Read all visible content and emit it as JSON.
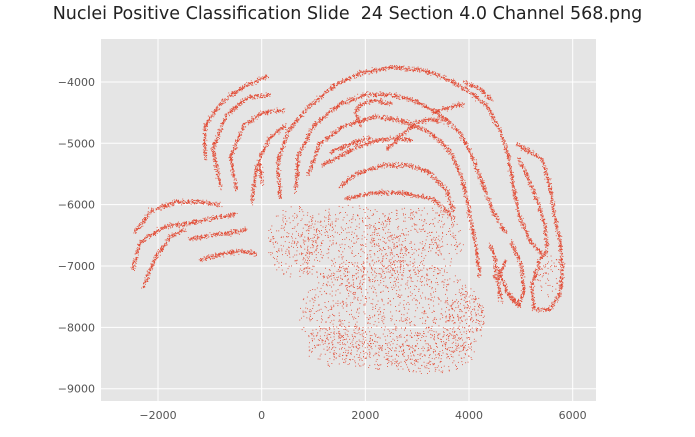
{
  "title": "Nuclei Positive Classification Slide  24 Section 4.0 Channel 568.png",
  "chart_data": {
    "type": "scatter",
    "title": "Nuclei Positive Classification Slide  24 Section 4.0 Channel 568.png",
    "xlabel": "",
    "ylabel": "",
    "xlim": [
      -3100,
      6450
    ],
    "ylim": [
      -9200,
      -3300
    ],
    "grid": true,
    "background": "#e5e5e5",
    "grid_color": "#ffffff",
    "marker_color": "#e24a33",
    "x_ticks": [
      -2000,
      0,
      2000,
      4000,
      6000
    ],
    "x_tick_labels": [
      "−2000",
      "0",
      "2000",
      "4000",
      "6000"
    ],
    "y_ticks": [
      -4000,
      -5000,
      -6000,
      -7000,
      -8000,
      -9000
    ],
    "y_tick_labels": [
      "−4000",
      "−5000",
      "−6000",
      "−7000",
      "−8000",
      "−9000"
    ],
    "point_count_note": "dense scatter of nuclei centroids (tens of thousands of points)",
    "structures": {
      "bands": [
        [
          [
            -2450,
            -6450
          ],
          [
            -2150,
            -6100
          ],
          [
            -1700,
            -5950
          ],
          [
            -1200,
            -5950
          ],
          [
            -800,
            -6000
          ]
        ],
        [
          [
            -2500,
            -7050
          ],
          [
            -2350,
            -6600
          ],
          [
            -1900,
            -6350
          ],
          [
            -1400,
            -6300
          ],
          [
            -900,
            -6200
          ],
          [
            -500,
            -6150
          ]
        ],
        [
          [
            -2300,
            -7350
          ],
          [
            -2050,
            -6850
          ],
          [
            -1750,
            -6500
          ],
          [
            -1500,
            -6400
          ]
        ],
        [
          [
            -1400,
            -6550
          ],
          [
            -1000,
            -6500
          ],
          [
            -600,
            -6450
          ],
          [
            -300,
            -6400
          ]
        ],
        [
          [
            -1200,
            -6900
          ],
          [
            -800,
            -6800
          ],
          [
            -400,
            -6750
          ],
          [
            -100,
            -6800
          ]
        ],
        [
          [
            -1100,
            -5250
          ],
          [
            -1100,
            -4700
          ],
          [
            -750,
            -4300
          ],
          [
            -300,
            -4050
          ],
          [
            100,
            -3900
          ]
        ],
        [
          [
            -800,
            -5700
          ],
          [
            -950,
            -5100
          ],
          [
            -700,
            -4550
          ],
          [
            -300,
            -4250
          ],
          [
            150,
            -4200
          ]
        ],
        [
          [
            -500,
            -5750
          ],
          [
            -600,
            -5200
          ],
          [
            -350,
            -4700
          ],
          [
            0,
            -4500
          ],
          [
            400,
            -4450
          ]
        ],
        [
          [
            -200,
            -5950
          ],
          [
            -100,
            -5350
          ],
          [
            150,
            -4900
          ],
          [
            450,
            -4700
          ]
        ],
        [
          [
            0,
            -5650
          ],
          [
            -50,
            -5300
          ]
        ],
        [
          [
            350,
            -5900
          ],
          [
            300,
            -5300
          ],
          [
            500,
            -4800
          ],
          [
            900,
            -4400
          ],
          [
            1400,
            -4050
          ],
          [
            1900,
            -3850
          ],
          [
            2500,
            -3750
          ],
          [
            3100,
            -3800
          ],
          [
            3600,
            -3950
          ],
          [
            4000,
            -4150
          ],
          [
            4350,
            -4400
          ],
          [
            4600,
            -4800
          ],
          [
            4750,
            -5200
          ],
          [
            4850,
            -5700
          ],
          [
            4950,
            -6150
          ],
          [
            5150,
            -6550
          ],
          [
            5400,
            -6800
          ]
        ],
        [
          [
            650,
            -5800
          ],
          [
            700,
            -5200
          ],
          [
            1000,
            -4700
          ],
          [
            1500,
            -4350
          ],
          [
            2000,
            -4200
          ],
          [
            2500,
            -4200
          ],
          [
            2950,
            -4300
          ],
          [
            3400,
            -4500
          ],
          [
            3800,
            -4800
          ],
          [
            4050,
            -5200
          ],
          [
            4250,
            -5650
          ],
          [
            4450,
            -6100
          ],
          [
            4700,
            -6450
          ]
        ],
        [
          [
            900,
            -5500
          ],
          [
            1100,
            -5000
          ],
          [
            1600,
            -4700
          ],
          [
            2200,
            -4550
          ],
          [
            2800,
            -4650
          ],
          [
            3300,
            -4850
          ],
          [
            3650,
            -5150
          ],
          [
            3850,
            -5550
          ],
          [
            3950,
            -5900
          ],
          [
            4050,
            -6350
          ],
          [
            4150,
            -6800
          ],
          [
            4200,
            -7150
          ]
        ],
        [
          [
            1150,
            -5350
          ],
          [
            1500,
            -5200
          ],
          [
            1850,
            -5050
          ],
          [
            2200,
            -4950
          ],
          [
            2600,
            -4900
          ],
          [
            2900,
            -4950
          ]
        ],
        [
          [
            1300,
            -5150
          ],
          [
            1700,
            -5000
          ],
          [
            2100,
            -4900
          ]
        ],
        [
          [
            1500,
            -5700
          ],
          [
            1800,
            -5500
          ],
          [
            2300,
            -5350
          ],
          [
            2800,
            -5350
          ],
          [
            3200,
            -5450
          ],
          [
            3550,
            -5750
          ],
          [
            3700,
            -6100
          ]
        ],
        [
          [
            1600,
            -5900
          ],
          [
            2100,
            -5800
          ],
          [
            2700,
            -5800
          ],
          [
            3300,
            -5900
          ],
          [
            3700,
            -6200
          ]
        ],
        [
          [
            2400,
            -5100
          ],
          [
            2700,
            -4850
          ],
          [
            3000,
            -4650
          ],
          [
            3300,
            -4600
          ],
          [
            3500,
            -4650
          ]
        ],
        [
          [
            3300,
            -4500
          ],
          [
            3650,
            -4400
          ],
          [
            3900,
            -4350
          ]
        ],
        [
          [
            1900,
            -4700
          ],
          [
            1800,
            -4500
          ],
          [
            1900,
            -4350
          ],
          [
            2200,
            -4300
          ],
          [
            2500,
            -4350
          ]
        ],
        [
          [
            3900,
            -4000
          ],
          [
            4200,
            -4100
          ],
          [
            4450,
            -4300
          ]
        ],
        [
          [
            4900,
            -5000
          ],
          [
            5100,
            -5100
          ],
          [
            5400,
            -5250
          ],
          [
            5550,
            -5700
          ],
          [
            5650,
            -6200
          ],
          [
            5750,
            -6600
          ],
          [
            5800,
            -7050
          ],
          [
            5750,
            -7450
          ],
          [
            5550,
            -7700
          ],
          [
            5250,
            -7700
          ],
          [
            5200,
            -7350
          ],
          [
            5350,
            -6900
          ],
          [
            5500,
            -6750
          ]
        ],
        [
          [
            4950,
            -5250
          ],
          [
            5100,
            -5500
          ],
          [
            5300,
            -5900
          ],
          [
            5450,
            -6300
          ],
          [
            5500,
            -6700
          ]
        ],
        [
          [
            4800,
            -6600
          ],
          [
            5000,
            -6950
          ],
          [
            5050,
            -7400
          ],
          [
            4950,
            -7650
          ],
          [
            4800,
            -7500
          ]
        ],
        [
          [
            4700,
            -6900
          ],
          [
            4550,
            -7200
          ],
          [
            4600,
            -7550
          ]
        ],
        [
          [
            4400,
            -6650
          ],
          [
            4500,
            -6900
          ],
          [
            4500,
            -7200
          ]
        ],
        [
          [
            4550,
            -7050
          ],
          [
            4750,
            -7450
          ],
          [
            5000,
            -7650
          ]
        ]
      ],
      "blobs": [
        [
          5550,
          -7150,
          250,
          350
        ],
        [
          1700,
          -6700,
          1100,
          700
        ],
        [
          3000,
          -6600,
          900,
          600
        ],
        [
          2500,
          -7800,
          1800,
          900
        ],
        [
          1500,
          -8300,
          700,
          350
        ],
        [
          3200,
          -8400,
          900,
          350
        ],
        [
          600,
          -6600,
          500,
          600
        ],
        [
          3900,
          -7900,
          400,
          500
        ]
      ]
    }
  }
}
